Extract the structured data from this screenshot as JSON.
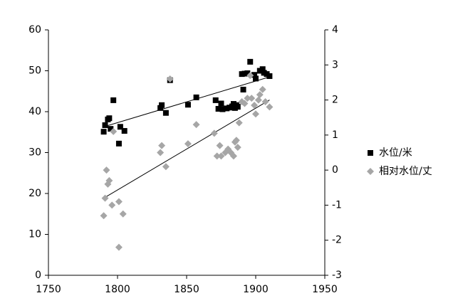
{
  "chart_data": {
    "type": "scatter",
    "xlim": [
      1750,
      1950
    ],
    "xticks": [
      1750,
      1800,
      1850,
      1900,
      1950
    ],
    "ylim": [
      0,
      60
    ],
    "yticks": [
      0,
      10,
      20,
      30,
      40,
      50,
      60
    ],
    "y2lim": [
      -3,
      4
    ],
    "y2ticks": [
      -3,
      -2,
      -1,
      0,
      1,
      2,
      3,
      4
    ],
    "series": [
      {
        "name": "水位/米",
        "color": "#000000",
        "marker": "square",
        "x": [
          1790,
          1791,
          1793,
          1794,
          1795,
          1797,
          1801,
          1802,
          1805,
          1831,
          1832,
          1835,
          1838,
          1851,
          1857,
          1871,
          1873,
          1875,
          1876,
          1879,
          1881,
          1883,
          1884,
          1885,
          1886,
          1887,
          1891,
          1890,
          1892,
          1894,
          1896,
          1899,
          1900,
          1903,
          1905,
          1906,
          1908,
          1910
        ],
        "values": [
          35.1,
          36.7,
          38.1,
          38.4,
          35.8,
          42.8,
          32.2,
          36.3,
          35.3,
          40.9,
          41.6,
          39.7,
          47.7,
          41.7,
          43.5,
          42.8,
          40.7,
          42,
          40.6,
          40.8,
          41,
          41.3,
          41.9,
          40.9,
          41.6,
          41.2,
          45.4,
          49.2,
          49.3,
          49.4,
          52.2,
          49,
          48.1,
          50,
          50.4,
          49.5,
          49.2,
          48.7
        ],
        "trendline": {
          "x": [
            1790,
            1910
          ],
          "values": [
            36.3,
            48.5
          ]
        }
      },
      {
        "name": "相对水位/丈",
        "color": "#a6a6a6",
        "marker": "diamond",
        "axis": "y2",
        "x": [
          1790,
          1791,
          1792,
          1793,
          1794,
          1796,
          1797,
          1801,
          1801,
          1804,
          1831,
          1832,
          1835,
          1838,
          1851,
          1857,
          1870,
          1872,
          1874,
          1875,
          1878,
          1880,
          1882,
          1884,
          1885,
          1886,
          1887,
          1888,
          1890,
          1892,
          1894,
          1896,
          1897,
          1899,
          1900,
          1902,
          1903,
          1905,
          1907,
          1910
        ],
        "values": [
          -1.3,
          -0.8,
          0,
          -0.4,
          -0.3,
          -1,
          1.1,
          -0.9,
          -2.2,
          -1.25,
          0.5,
          0.7,
          0.1,
          2.6,
          0.75,
          1.3,
          1.05,
          0.4,
          0.7,
          0.4,
          0.5,
          0.6,
          0.5,
          0.4,
          0.8,
          0.85,
          0.65,
          1.35,
          1.95,
          1.9,
          2.05,
          2.7,
          2.05,
          1.85,
          1.6,
          2.0,
          2.15,
          2.3,
          1.95,
          1.8
        ],
        "trendline": {
          "x": [
            1790,
            1910
          ],
          "values": [
            -0.8,
            2.0
          ]
        }
      }
    ]
  }
}
